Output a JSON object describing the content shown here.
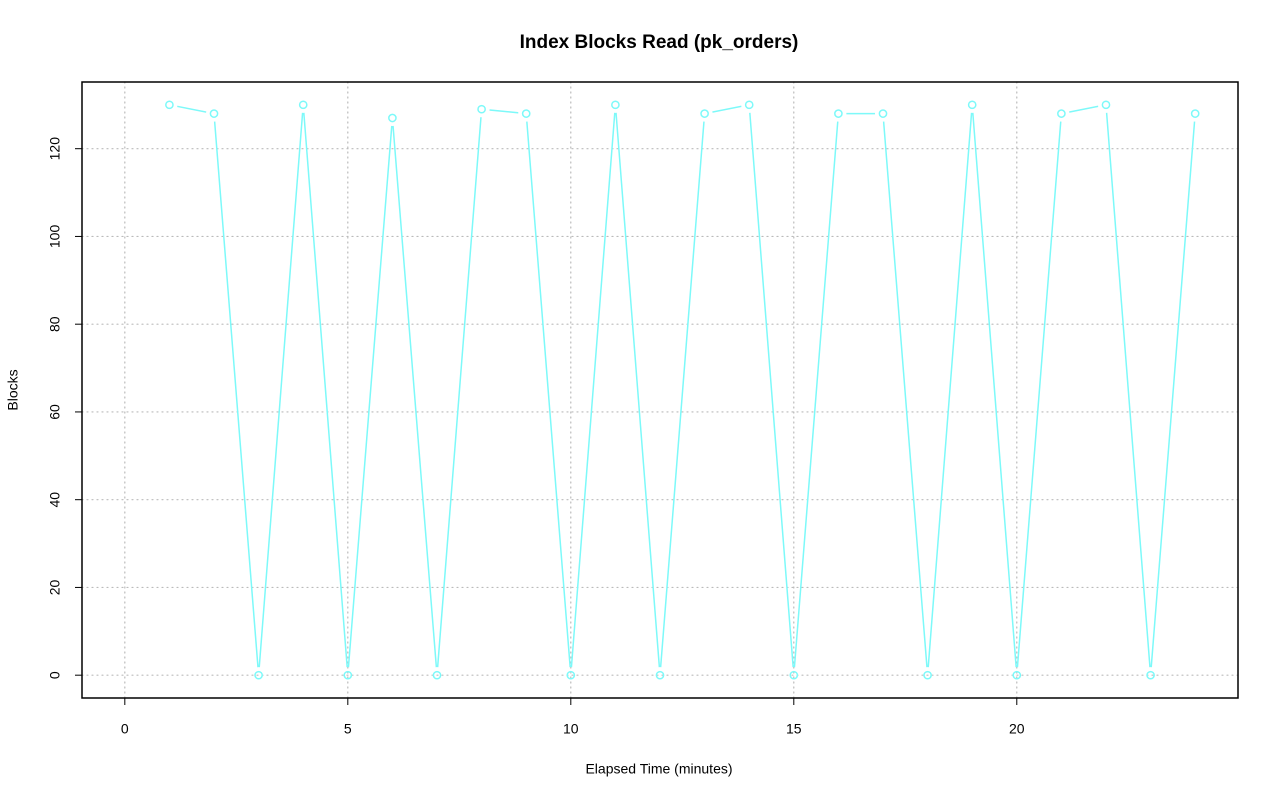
{
  "chart_data": {
    "type": "line",
    "title": "Index Blocks Read (pk_orders)",
    "x_label": "Elapsed Time (minutes)",
    "y_label": "Blocks",
    "x": [
      1,
      2,
      3,
      4,
      5,
      6,
      7,
      8,
      9,
      10,
      11,
      12,
      13,
      14,
      15,
      16,
      17,
      18,
      19,
      20,
      21,
      22,
      23,
      24
    ],
    "series": [
      {
        "color": "#7df9f9",
        "values": [
          130,
          128,
          0,
          130,
          0,
          127,
          0,
          129,
          128,
          0,
          130,
          0,
          128,
          130,
          0,
          128,
          128,
          0,
          130,
          0,
          128,
          130,
          0,
          128
        ]
      }
    ],
    "xlim": [
      -0.96,
      24.96
    ],
    "ylim": [
      -5.2,
      135.2
    ],
    "xticks": [
      0,
      5,
      10,
      15,
      20
    ],
    "yticks": [
      0,
      20,
      40,
      60,
      80,
      100,
      120
    ],
    "grid": true
  }
}
